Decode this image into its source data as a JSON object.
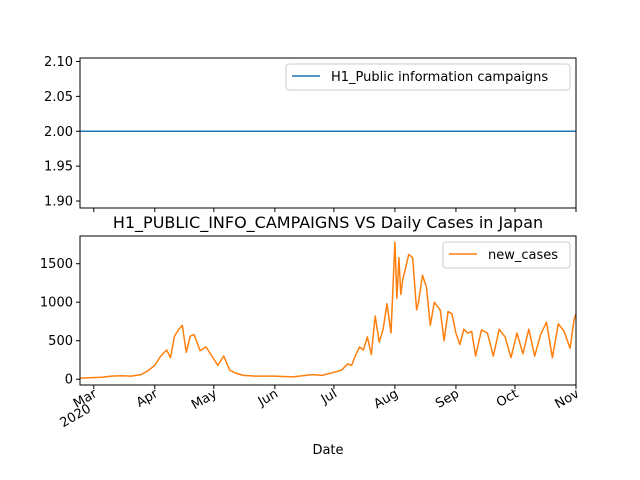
{
  "chart_data": [
    {
      "type": "line",
      "title": "",
      "ylim": [
        1.89,
        2.105
      ],
      "yticks": [
        "1.90",
        "1.95",
        "2.00",
        "2.05",
        "2.10"
      ],
      "ytick_values": [
        1.9,
        1.95,
        2.0,
        2.05,
        2.1
      ],
      "legend": "top-right",
      "grid": false,
      "series": [
        {
          "name": "H1_Public information campaigns",
          "color": "#1f77b4",
          "x": [
            "2020-02-23",
            "2020-11-01"
          ],
          "y": [
            2.0,
            2.0
          ]
        }
      ]
    },
    {
      "type": "line",
      "title": "H1_PUBLIC_INFO_CAMPAIGNS VS Daily Cases in Japan",
      "xlabel": "Date",
      "ylim": [
        -75,
        1860
      ],
      "yticks": [
        "0",
        "500",
        "1000",
        "1500"
      ],
      "ytick_values": [
        0,
        500,
        1000,
        1500
      ],
      "xlim": [
        "2020-02-23",
        "2020-11-01"
      ],
      "xticks": [
        {
          "date": "2020-03-01",
          "label": "Mar",
          "sublabel": "2020"
        },
        {
          "date": "2020-04-01",
          "label": "Apr",
          "sublabel": ""
        },
        {
          "date": "2020-05-01",
          "label": "May",
          "sublabel": ""
        },
        {
          "date": "2020-06-01",
          "label": "Jun",
          "sublabel": ""
        },
        {
          "date": "2020-07-01",
          "label": "Jul",
          "sublabel": ""
        },
        {
          "date": "2020-08-01",
          "label": "Aug",
          "sublabel": ""
        },
        {
          "date": "2020-09-01",
          "label": "Sep",
          "sublabel": ""
        },
        {
          "date": "2020-10-01",
          "label": "Oct",
          "sublabel": ""
        },
        {
          "date": "2020-11-01",
          "label": "Nov",
          "sublabel": ""
        }
      ],
      "legend": "top-right",
      "grid": false,
      "series": [
        {
          "name": "new_cases",
          "color": "#ff7f0e",
          "x": [
            "2020-02-23",
            "2020-02-28",
            "2020-03-05",
            "2020-03-10",
            "2020-03-15",
            "2020-03-20",
            "2020-03-25",
            "2020-03-28",
            "2020-04-01",
            "2020-04-04",
            "2020-04-07",
            "2020-04-09",
            "2020-04-11",
            "2020-04-13",
            "2020-04-15",
            "2020-04-17",
            "2020-04-19",
            "2020-04-21",
            "2020-04-24",
            "2020-04-27",
            "2020-04-30",
            "2020-05-03",
            "2020-05-06",
            "2020-05-09",
            "2020-05-12",
            "2020-05-16",
            "2020-05-22",
            "2020-06-01",
            "2020-06-10",
            "2020-06-20",
            "2020-06-25",
            "2020-07-01",
            "2020-07-05",
            "2020-07-08",
            "2020-07-10",
            "2020-07-12",
            "2020-07-14",
            "2020-07-16",
            "2020-07-18",
            "2020-07-20",
            "2020-07-22",
            "2020-07-24",
            "2020-07-26",
            "2020-07-28",
            "2020-07-30",
            "2020-08-01",
            "2020-08-02",
            "2020-08-03",
            "2020-08-04",
            "2020-08-05",
            "2020-08-06",
            "2020-08-08",
            "2020-08-10",
            "2020-08-12",
            "2020-08-13",
            "2020-08-15",
            "2020-08-17",
            "2020-08-19",
            "2020-08-21",
            "2020-08-24",
            "2020-08-26",
            "2020-08-28",
            "2020-08-30",
            "2020-09-01",
            "2020-09-03",
            "2020-09-05",
            "2020-09-07",
            "2020-09-09",
            "2020-09-11",
            "2020-09-14",
            "2020-09-17",
            "2020-09-20",
            "2020-09-23",
            "2020-09-26",
            "2020-09-29",
            "2020-10-02",
            "2020-10-05",
            "2020-10-08",
            "2020-10-11",
            "2020-10-14",
            "2020-10-17",
            "2020-10-20",
            "2020-10-23",
            "2020-10-26",
            "2020-10-29",
            "2020-10-31",
            "2020-11-01"
          ],
          "y": [
            15,
            20,
            25,
            40,
            45,
            40,
            60,
            100,
            180,
            300,
            380,
            280,
            560,
            640,
            700,
            350,
            560,
            580,
            370,
            420,
            300,
            180,
            300,
            120,
            80,
            50,
            40,
            40,
            30,
            60,
            50,
            90,
            120,
            200,
            180,
            310,
            420,
            380,
            550,
            320,
            820,
            480,
            650,
            980,
            600,
            1780,
            1050,
            1580,
            1100,
            1300,
            1400,
            1620,
            1580,
            900,
            1000,
            1350,
            1200,
            700,
            1000,
            900,
            500,
            880,
            850,
            600,
            450,
            650,
            600,
            620,
            300,
            640,
            600,
            300,
            650,
            550,
            280,
            600,
            330,
            650,
            300,
            580,
            740,
            280,
            720,
            620,
            400,
            770,
            850
          ]
        }
      ]
    }
  ]
}
